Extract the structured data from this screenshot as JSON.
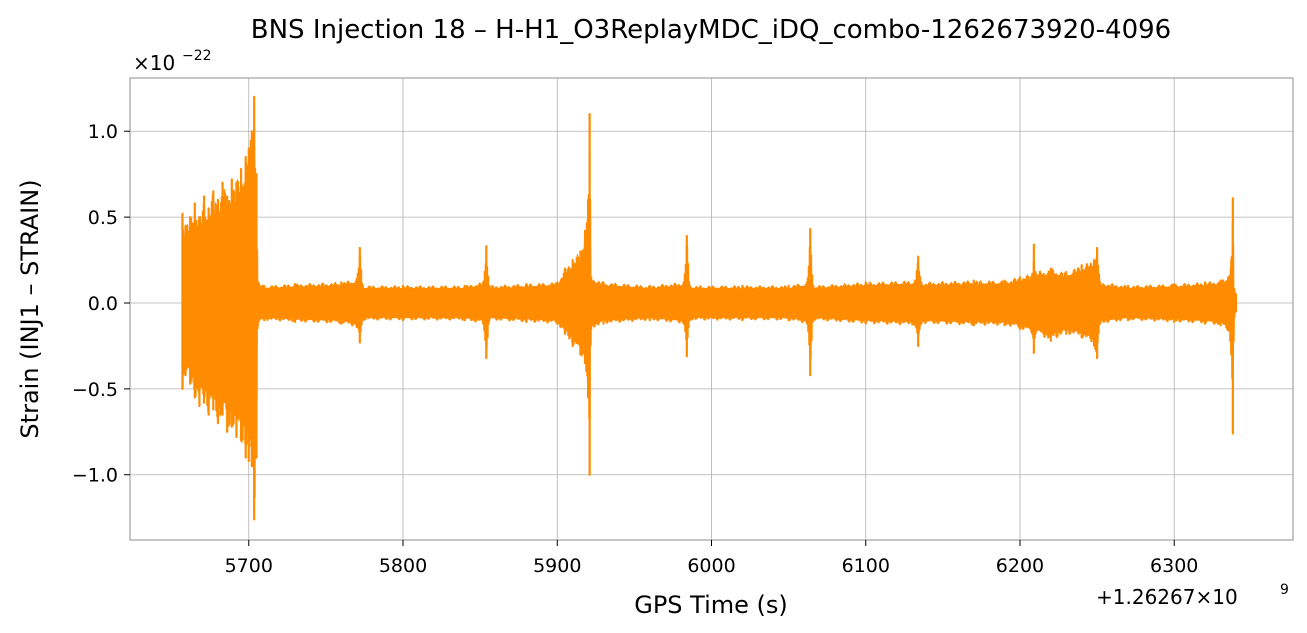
{
  "chart_data": {
    "type": "line",
    "title": "BNS Injection 18 – H-H1_O3ReplayMDC_iDQ_combo-1262673920-4096",
    "xlabel": "GPS Time (s)",
    "ylabel": "Strain (INJ1 – STRAIN)",
    "x_offset_text": "+1.26267×10",
    "x_offset_exp": "9",
    "y_scale_text": "×10",
    "y_scale_exp": "−22",
    "xlim": [
      5623,
      6377
    ],
    "ylim": [
      -1.38,
      1.31
    ],
    "x_ticks": [
      5700,
      5800,
      5900,
      6000,
      6100,
      6200,
      6300
    ],
    "x_tick_labels": [
      "5700",
      "5800",
      "5900",
      "6000",
      "6100",
      "6200",
      "6300"
    ],
    "y_ticks": [
      1.0,
      0.5,
      0.0,
      -0.5,
      -1.0
    ],
    "y_tick_labels": [
      "1.0",
      "0.5",
      "0.0",
      "−0.5",
      "−1.0"
    ],
    "grid": true,
    "color": "#ff8c00",
    "series": [
      {
        "name": "",
        "x": [
          5657,
          5659,
          5662,
          5665,
          5668,
          5671,
          5674,
          5677,
          5680,
          5683,
          5686,
          5689,
          5692,
          5695,
          5698,
          5700,
          5702,
          5703.5,
          5705,
          5706,
          5710,
          5730,
          5760,
          5770,
          5772,
          5774,
          5800,
          5840,
          5852,
          5854,
          5856,
          5880,
          5900,
          5905,
          5910,
          5915,
          5918,
          5920,
          5921,
          5922,
          5930,
          5960,
          5982,
          5984,
          5986,
          6020,
          6050,
          6062,
          6064,
          6066,
          6100,
          6132,
          6134,
          6136,
          6170,
          6190,
          6200,
          6208,
          6209,
          6210,
          6220,
          6230,
          6240,
          6248,
          6250,
          6252,
          6270,
          6300,
          6320,
          6330,
          6335,
          6337,
          6338,
          6339,
          6340
        ],
        "upper": [
          0.52,
          0.45,
          0.5,
          0.58,
          0.5,
          0.62,
          0.55,
          0.65,
          0.6,
          0.7,
          0.62,
          0.72,
          0.7,
          0.78,
          0.85,
          0.9,
          1.0,
          1.2,
          0.75,
          0.12,
          0.1,
          0.11,
          0.12,
          0.14,
          0.32,
          0.1,
          0.1,
          0.1,
          0.12,
          0.33,
          0.1,
          0.11,
          0.12,
          0.2,
          0.25,
          0.3,
          0.42,
          0.6,
          1.1,
          0.15,
          0.12,
          0.1,
          0.12,
          0.39,
          0.1,
          0.1,
          0.1,
          0.12,
          0.43,
          0.1,
          0.12,
          0.13,
          0.27,
          0.12,
          0.13,
          0.13,
          0.15,
          0.17,
          0.34,
          0.18,
          0.2,
          0.18,
          0.22,
          0.25,
          0.32,
          0.12,
          0.1,
          0.11,
          0.12,
          0.13,
          0.15,
          0.25,
          0.61,
          0.08,
          0.05
        ],
        "lower": [
          -0.5,
          -0.42,
          -0.47,
          -0.55,
          -0.6,
          -0.58,
          -0.65,
          -0.62,
          -0.7,
          -0.65,
          -0.75,
          -0.72,
          -0.78,
          -0.8,
          -0.9,
          -0.92,
          -0.95,
          -1.26,
          -0.9,
          -0.12,
          -0.1,
          -0.11,
          -0.12,
          -0.14,
          -0.23,
          -0.1,
          -0.1,
          -0.1,
          -0.12,
          -0.32,
          -0.1,
          -0.11,
          -0.12,
          -0.18,
          -0.25,
          -0.3,
          -0.35,
          -0.55,
          -1.0,
          -0.15,
          -0.12,
          -0.1,
          -0.12,
          -0.31,
          -0.1,
          -0.1,
          -0.1,
          -0.12,
          -0.42,
          -0.1,
          -0.12,
          -0.13,
          -0.25,
          -0.12,
          -0.13,
          -0.13,
          -0.15,
          -0.18,
          -0.29,
          -0.18,
          -0.22,
          -0.18,
          -0.2,
          -0.25,
          -0.32,
          -0.12,
          -0.1,
          -0.11,
          -0.12,
          -0.13,
          -0.16,
          -0.3,
          -0.76,
          -0.08,
          -0.05
        ]
      }
    ]
  }
}
